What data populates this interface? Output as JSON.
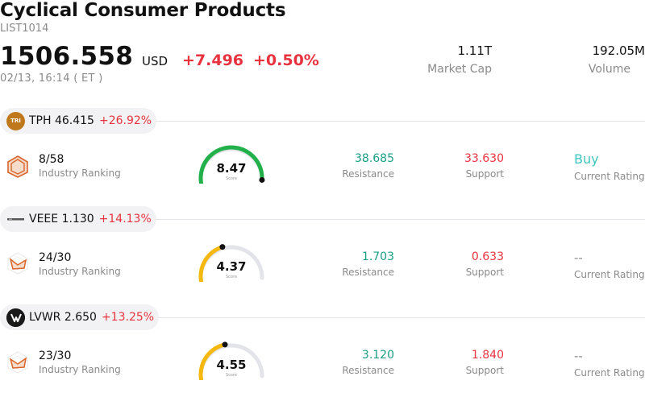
{
  "header": {
    "title": "Cyclical Consumer Products",
    "code": "LIST1014",
    "price": "1506.558",
    "currency": "USD",
    "change": "+7.496",
    "change_pct": "+0.50%",
    "time": "02/13, 16:14  ( ET )",
    "market_cap_value": "1.11T",
    "market_cap_label": "Market Cap",
    "volume_value": "192.05M",
    "volume_label": "Volume"
  },
  "rows": [
    {
      "ticker": "TPH 46.415",
      "ticker_pct": "+26.92%",
      "logo_text": "TRI",
      "logo_color": "#c0781c",
      "ranking": "8/58",
      "ranking_label": "Industry Ranking",
      "score": "8.47",
      "score_fraction": 0.847,
      "score_label": "Score",
      "score_color": "#22b04a",
      "resistance": "38.685",
      "resistance_label": "Resistance",
      "support": "33.630",
      "support_label": "Support",
      "rating": "Buy",
      "rating_label": "Current Rating"
    },
    {
      "ticker": "VEEE 1.130",
      "ticker_pct": "+14.13%",
      "logo_text": "",
      "logo_color": "#555555",
      "ranking": "24/30",
      "ranking_label": "Industry Ranking",
      "score": "4.37",
      "score_fraction": 0.437,
      "score_label": "Score",
      "score_color": "#f5b80f",
      "resistance": "1.703",
      "resistance_label": "Resistance",
      "support": "0.633",
      "support_label": "Support",
      "rating": "--",
      "rating_label": "Current Rating"
    },
    {
      "ticker": "LVWR 2.650",
      "ticker_pct": "+13.25%",
      "logo_text": "",
      "logo_color": "#1a1a1a",
      "ranking": "23/30",
      "ranking_label": "Industry Ranking",
      "score": "4.55",
      "score_fraction": 0.455,
      "score_label": "Score",
      "score_color": "#f5b80f",
      "resistance": "3.120",
      "resistance_label": "Resistance",
      "support": "1.840",
      "support_label": "Support",
      "rating": "--",
      "rating_label": "Current Rating"
    }
  ]
}
